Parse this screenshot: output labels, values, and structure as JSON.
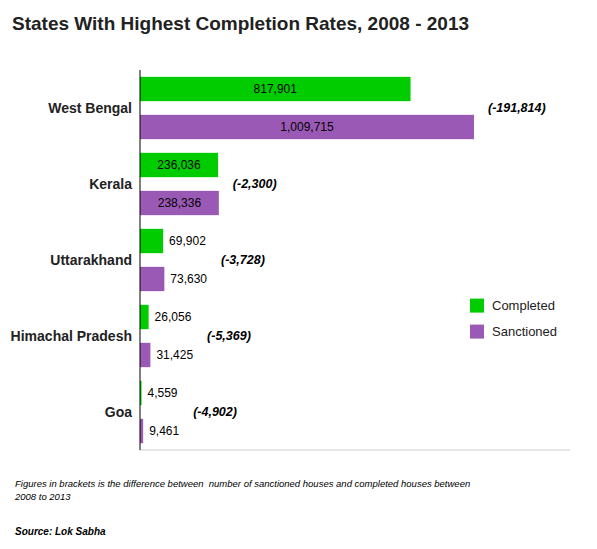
{
  "chart_data": {
    "type": "bar",
    "orientation": "horizontal",
    "title": "States With Highest Completion Rates, 2008 - 2013",
    "categories": [
      "West Bengal",
      "Kerala",
      "Uttarakhand",
      "Himachal Pradesh",
      "Goa"
    ],
    "series": [
      {
        "name": "Completed",
        "color": "#00cc00",
        "values": [
          817901,
          236036,
          69902,
          26056,
          4559
        ],
        "value_labels": [
          "817,901",
          "236,036",
          "69,902",
          "26,056",
          "4,559"
        ]
      },
      {
        "name": "Sanctioned",
        "color": "#9b59b6",
        "values": [
          1009715,
          238336,
          73630,
          31425,
          9461
        ],
        "value_labels": [
          "1,009,715",
          "238,336",
          "73,630",
          "31,425",
          "9,461"
        ]
      }
    ],
    "annotations": [
      "(-191,814)",
      "(-2,300)",
      "(-3,728)",
      "(-5,369)",
      "(-4,902)"
    ],
    "footnote": "Figures in brackets is the difference between  number of sanctioned houses and completed houses between\n2008 to 2013",
    "source": "Source: Lok Sabha",
    "xlim": [
      0,
      1300000
    ],
    "xticks": [],
    "tick_labels": "y",
    "data_labels": true,
    "grid": false,
    "legend": "right"
  }
}
